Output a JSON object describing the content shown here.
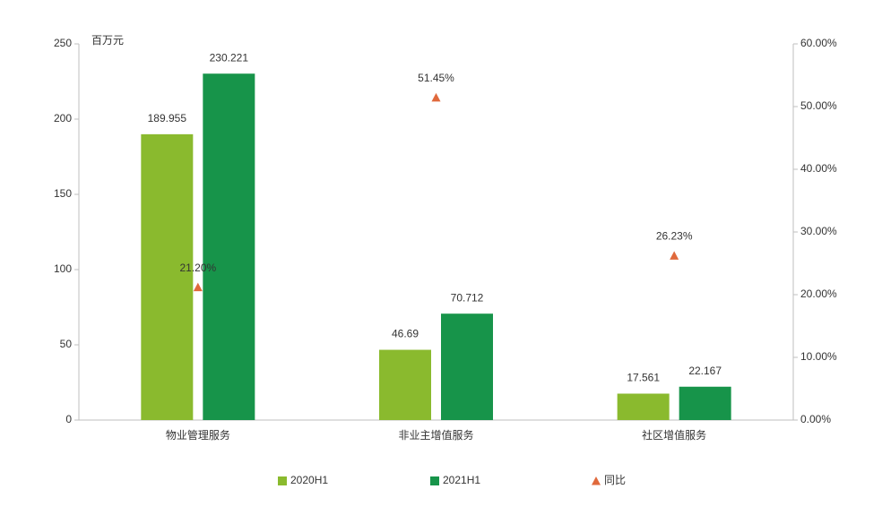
{
  "chart_data": {
    "type": "bar",
    "y_unit_label": "百万元",
    "categories": [
      "物业管理服务",
      "非业主增值服务",
      "社区增值服务"
    ],
    "series": [
      {
        "name": "2020H1",
        "type": "bar",
        "color": "#8aba2e",
        "values": [
          189.955,
          46.69,
          17.561
        ]
      },
      {
        "name": "2021H1",
        "type": "bar",
        "color": "#17944a",
        "values": [
          230.221,
          70.712,
          22.167
        ]
      },
      {
        "name": "同比",
        "type": "scatter",
        "axis": "y2",
        "color": "#e0693c",
        "values": [
          21.2,
          51.45,
          26.23
        ],
        "value_labels": [
          "21.20%",
          "51.45%",
          "26.23%"
        ]
      }
    ],
    "ylim": [
      0,
      250
    ],
    "yticks": [
      0,
      50,
      100,
      150,
      200,
      250
    ],
    "y2lim": [
      0,
      60
    ],
    "y2ticks": [
      {
        "value": 0,
        "label": "0.00%"
      },
      {
        "value": 10,
        "label": "10.00%"
      },
      {
        "value": 20,
        "label": "20.00%"
      },
      {
        "value": 30,
        "label": "30.00%"
      },
      {
        "value": 40,
        "label": "40.00%"
      },
      {
        "value": 50,
        "label": "50.00%"
      },
      {
        "value": 60,
        "label": "60.00%"
      }
    ],
    "legend": "bottom"
  }
}
